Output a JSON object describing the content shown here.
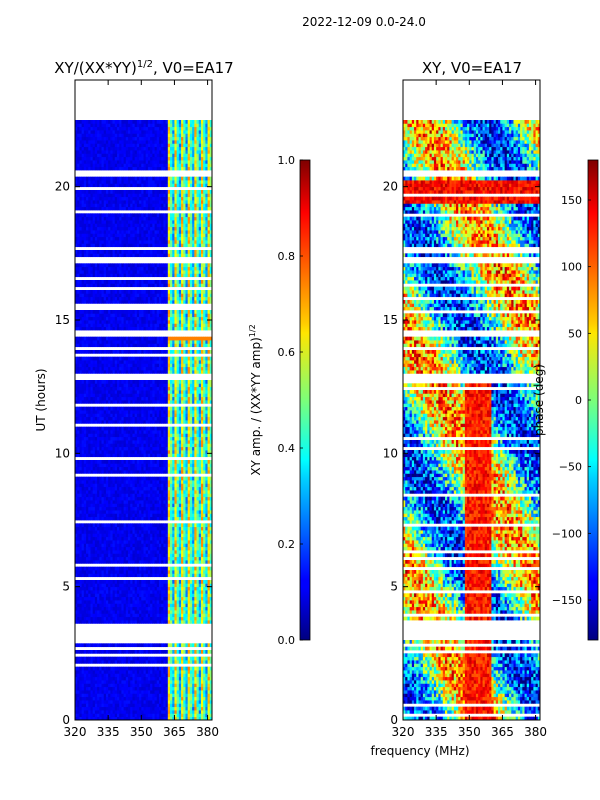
{
  "figure_title": "2022-12-09 0.0-24.0",
  "shared_xlabel": "frequency (MHz)",
  "chart_data": [
    {
      "type": "heatmap",
      "title": "XY/(XX*YY)",
      "title_exp": "1/2",
      "title_suffix": ", V0=EA17",
      "xlabel": "",
      "ylabel": "UT (hours)",
      "xlim": [
        320,
        382
      ],
      "ylim": [
        0,
        24
      ],
      "xticks": [
        320,
        335,
        350,
        365,
        380
      ],
      "yticks": [
        0,
        5,
        10,
        15,
        20
      ],
      "data_extent_hours": [
        0,
        22.5
      ],
      "colorbar": {
        "label": "XY amp. / (XX*YY amp)",
        "label_exp": "1/2",
        "range": [
          0.0,
          1.0
        ],
        "ticks": [
          "0.0",
          "0.2",
          "0.4",
          "0.6",
          "0.8",
          "1.0"
        ],
        "tick_values": [
          0.0,
          0.2,
          0.4,
          0.6,
          0.8,
          1.0
        ]
      },
      "gaps_hours": [
        [
          3.0,
          3.6
        ],
        [
          12.8,
          13.0
        ],
        [
          14.4,
          14.6
        ],
        [
          17.1,
          17.4
        ],
        [
          20.4,
          20.6
        ]
      ]
    },
    {
      "type": "heatmap",
      "title": "XY, V0=EA17",
      "xlabel": "frequency (MHz)",
      "ylabel": "",
      "xlim": [
        320,
        382
      ],
      "ylim": [
        0,
        24
      ],
      "xticks": [
        320,
        335,
        350,
        365,
        380
      ],
      "yticks": [
        0,
        5,
        10,
        15,
        20
      ],
      "data_extent_hours": [
        0,
        22.5
      ],
      "colorbar": {
        "label": "phase (deg)",
        "range": [
          -180,
          180
        ],
        "ticks": [
          "−150",
          "−100",
          "−50",
          "0",
          "50",
          "100",
          "150"
        ],
        "tick_values": [
          -150,
          -100,
          -50,
          0,
          50,
          100,
          150
        ]
      },
      "gaps_hours": [
        [
          3.0,
          3.6
        ],
        [
          12.8,
          13.0
        ],
        [
          14.4,
          14.6
        ],
        [
          17.1,
          17.4
        ],
        [
          20.4,
          20.6
        ]
      ]
    }
  ]
}
